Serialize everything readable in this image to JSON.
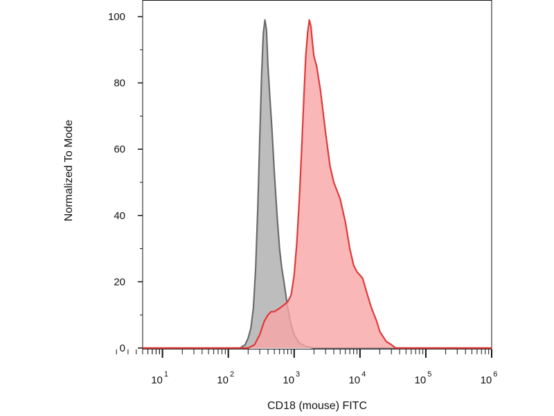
{
  "chart_data": {
    "type": "area",
    "xlabel": "CD18 (mouse) FITC",
    "ylabel": "Normalized To Mode",
    "x_scale": "log",
    "xlim": [
      5,
      1000000
    ],
    "ylim": [
      0,
      100
    ],
    "y_ticks": [
      {
        "value": 0,
        "label": "0"
      },
      {
        "value": 20,
        "label": "20"
      },
      {
        "value": 40,
        "label": "40"
      },
      {
        "value": 60,
        "label": "60"
      },
      {
        "value": 80,
        "label": "80"
      },
      {
        "value": 100,
        "label": "100"
      }
    ],
    "x_ticks": [
      {
        "value": 10,
        "base": "10",
        "exp": "1"
      },
      {
        "value": 100,
        "base": "10",
        "exp": "2"
      },
      {
        "value": 1000,
        "base": "10",
        "exp": "3"
      },
      {
        "value": 10000,
        "base": "10",
        "exp": "4"
      },
      {
        "value": 100000,
        "base": "10",
        "exp": "5"
      },
      {
        "value": 1000000,
        "base": "10",
        "exp": "6"
      }
    ],
    "grid": false,
    "legend": "none",
    "series": [
      {
        "color": "#6b6b6b",
        "fill": "#bdbdbd",
        "points": [
          [
            5,
            0
          ],
          [
            150,
            0
          ],
          [
            180,
            1
          ],
          [
            200,
            3
          ],
          [
            220,
            6
          ],
          [
            240,
            12
          ],
          [
            260,
            24
          ],
          [
            280,
            42
          ],
          [
            300,
            63
          ],
          [
            320,
            82
          ],
          [
            340,
            95
          ],
          [
            360,
            99
          ],
          [
            380,
            96
          ],
          [
            400,
            85
          ],
          [
            430,
            75
          ],
          [
            460,
            66
          ],
          [
            500,
            53
          ],
          [
            550,
            40
          ],
          [
            600,
            30
          ],
          [
            650,
            24
          ],
          [
            700,
            20
          ],
          [
            800,
            12
          ],
          [
            900,
            7
          ],
          [
            1000,
            4
          ],
          [
            1200,
            1.5
          ],
          [
            1500,
            0.5
          ],
          [
            2000,
            0
          ],
          [
            1000000,
            0
          ]
        ]
      },
      {
        "color": "#e03838",
        "fill": "#f7a5a5",
        "points": [
          [
            5,
            0
          ],
          [
            200,
            0
          ],
          [
            250,
            1
          ],
          [
            300,
            4
          ],
          [
            350,
            8
          ],
          [
            400,
            10
          ],
          [
            450,
            11
          ],
          [
            500,
            11
          ],
          [
            600,
            12
          ],
          [
            700,
            13
          ],
          [
            800,
            14
          ],
          [
            900,
            16
          ],
          [
            1000,
            22
          ],
          [
            1100,
            32
          ],
          [
            1200,
            45
          ],
          [
            1300,
            60
          ],
          [
            1400,
            75
          ],
          [
            1500,
            88
          ],
          [
            1600,
            95
          ],
          [
            1700,
            99
          ],
          [
            1800,
            97
          ],
          [
            1900,
            92
          ],
          [
            2000,
            88
          ],
          [
            2200,
            85
          ],
          [
            2500,
            78
          ],
          [
            3000,
            65
          ],
          [
            3500,
            55
          ],
          [
            4000,
            50
          ],
          [
            5000,
            45
          ],
          [
            6000,
            38
          ],
          [
            7000,
            30
          ],
          [
            8000,
            25
          ],
          [
            9000,
            23
          ],
          [
            10000,
            22
          ],
          [
            11000,
            21
          ],
          [
            13000,
            16
          ],
          [
            15000,
            12
          ],
          [
            18000,
            8
          ],
          [
            20000,
            5
          ],
          [
            25000,
            2
          ],
          [
            30000,
            1
          ],
          [
            35000,
            0
          ],
          [
            1000000,
            0
          ]
        ]
      }
    ]
  }
}
